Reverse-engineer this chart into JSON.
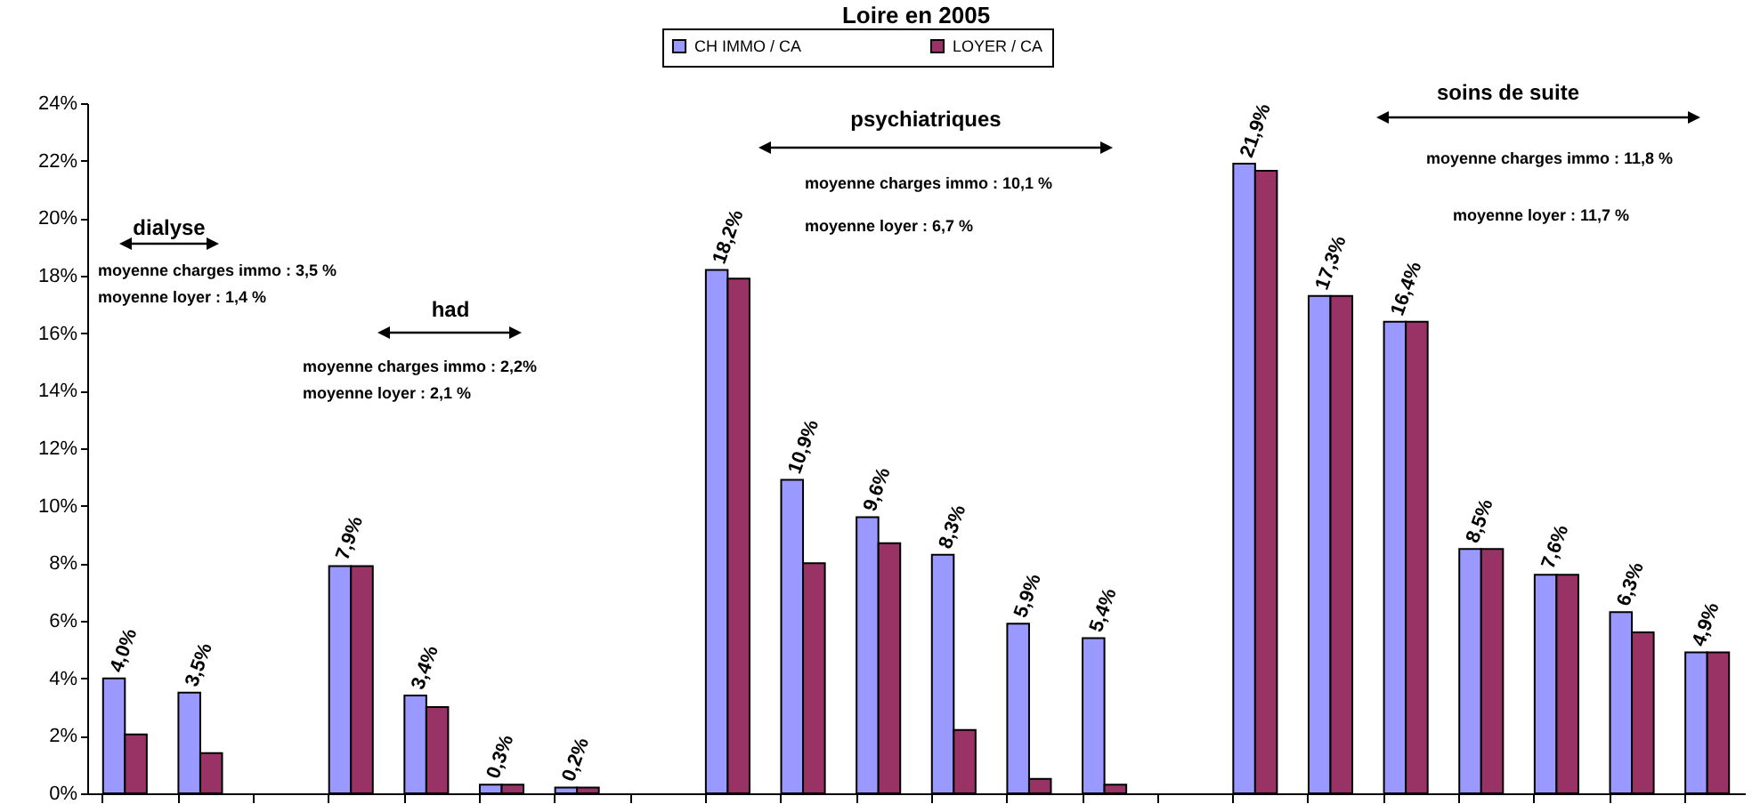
{
  "chart_data": {
    "type": "bar",
    "title": "Loire en 2005",
    "categories": [
      null,
      null,
      null,
      null,
      null,
      null,
      null,
      null,
      null,
      null,
      null,
      null,
      null,
      null,
      null,
      null,
      null,
      null,
      null,
      null,
      null,
      null
    ],
    "series": [
      {
        "name": "CH IMMO / CA",
        "color": "#9999ff",
        "values": [
          4.0,
          3.5,
          null,
          7.9,
          3.4,
          0.3,
          0.2,
          null,
          18.2,
          10.9,
          9.6,
          8.3,
          5.9,
          5.4,
          null,
          21.9,
          17.3,
          16.4,
          8.5,
          7.6,
          6.3,
          4.9
        ],
        "value_labels": [
          "4,0%",
          "3,5%",
          null,
          "7,9%",
          "3,4%",
          "0,3%",
          "0,2%",
          null,
          "18,2%",
          "10,9%",
          "9,6%",
          "8,3%",
          "5,9%",
          "5,4%",
          null,
          "21,9%",
          "17,3%",
          "16,4%",
          "8,5%",
          "7,6%",
          "6,3%",
          "4,9%"
        ]
      },
      {
        "name": "LOYER / CA",
        "color": "#993366",
        "values": [
          2.05,
          1.4,
          null,
          7.9,
          3.0,
          0.3,
          0.2,
          null,
          17.9,
          8.0,
          8.7,
          2.2,
          0.5,
          0.3,
          null,
          21.65,
          17.3,
          16.4,
          8.5,
          7.6,
          5.6,
          4.9
        ]
      }
    ],
    "ylim": [
      0,
      24
    ],
    "yticks": [
      {
        "value": 0,
        "label": "0%"
      },
      {
        "value": 2,
        "label": "2%"
      },
      {
        "value": 4,
        "label": "4%"
      },
      {
        "value": 6,
        "label": "6%"
      },
      {
        "value": 8,
        "label": "8%"
      },
      {
        "value": 10,
        "label": "10%"
      },
      {
        "value": 12,
        "label": "12%"
      },
      {
        "value": 14,
        "label": "14%"
      },
      {
        "value": 16,
        "label": "16%"
      },
      {
        "value": 18,
        "label": "18%"
      },
      {
        "value": 20,
        "label": "20%"
      },
      {
        "value": 22,
        "label": "22%"
      },
      {
        "value": 24,
        "label": "24%"
      }
    ],
    "tick_labels": "y",
    "legend": "top",
    "grid": false,
    "annotations": [
      "dialyse",
      "moyenne charges immo : 3,5 %",
      "moyenne loyer : 1,4 %",
      "had",
      "moyenne charges immo : 2,2%",
      "moyenne loyer : 2,1 %",
      "psychiatriques",
      "moyenne charges immo : 10,1 %",
      "moyenne loyer : 6,7 %",
      "soins de suite",
      "moyenne charges immo : 11,8 %",
      "moyenne loyer : 11,7 %"
    ]
  }
}
